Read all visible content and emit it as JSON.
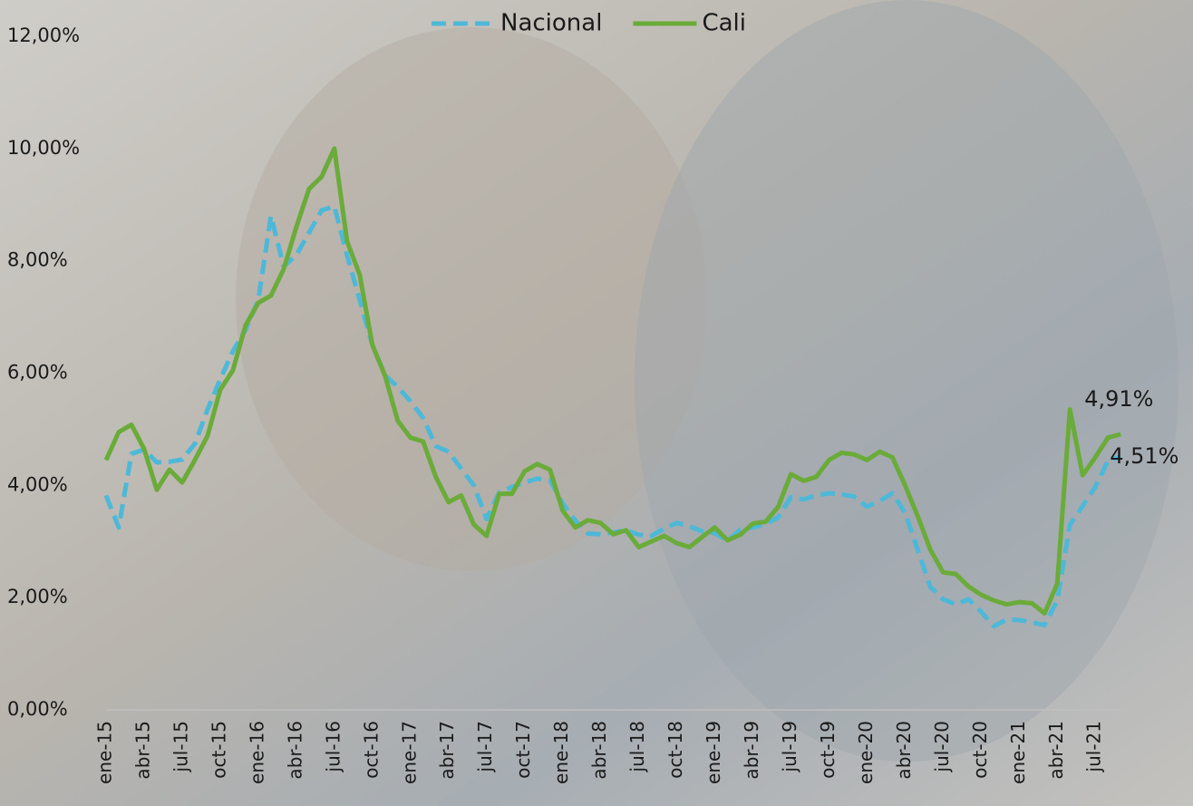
{
  "chart_data": {
    "type": "line",
    "categories": [
      "ene-15",
      null,
      null,
      "abr-15",
      null,
      null,
      "jul-15",
      null,
      null,
      "oct-15",
      null,
      null,
      "ene-16",
      null,
      null,
      "abr-16",
      null,
      null,
      "jul-16",
      null,
      null,
      "oct-16",
      null,
      null,
      "ene-17",
      null,
      null,
      "abr-17",
      null,
      null,
      "jul-17",
      null,
      null,
      "oct-17",
      null,
      null,
      "ene-18",
      null,
      null,
      "abr-18",
      null,
      null,
      "jul-18",
      null,
      null,
      "oct-18",
      null,
      null,
      "ene-19",
      null,
      null,
      "abr-19",
      null,
      null,
      "jul-19",
      null,
      null,
      "oct-19",
      null,
      null,
      "ene-20",
      null,
      null,
      "abr-20",
      null,
      null,
      "jul-20",
      null,
      null,
      "oct-20",
      null,
      null,
      "ene-21",
      null,
      null,
      "abr-21",
      null,
      null,
      "jul-21",
      null,
      null
    ],
    "series": [
      {
        "name": "Nacional",
        "color": "#4db8d8",
        "dashed": true,
        "end_label": "4,51%",
        "values": [
          3.82,
          3.25,
          4.56,
          4.64,
          4.41,
          4.42,
          4.46,
          4.74,
          5.35,
          5.89,
          6.39,
          6.77,
          7.3,
          8.8,
          7.9,
          8.1,
          8.5,
          8.9,
          8.97,
          8.1,
          7.3,
          6.5,
          5.96,
          5.75,
          5.5,
          5.2,
          4.7,
          4.6,
          4.3,
          4.0,
          3.4,
          3.87,
          3.97,
          4.05,
          4.12,
          4.09,
          3.68,
          3.37,
          3.14,
          3.13,
          3.16,
          3.2,
          3.12,
          3.1,
          3.23,
          3.33,
          3.27,
          3.18,
          3.15,
          3.01,
          3.21,
          3.25,
          3.31,
          3.43,
          3.79,
          3.75,
          3.82,
          3.86,
          3.84,
          3.8,
          3.62,
          3.72,
          3.86,
          3.51,
          2.85,
          2.19,
          1.97,
          1.88,
          1.97,
          1.75,
          1.49,
          1.61,
          1.6,
          1.56,
          1.51,
          1.95,
          3.3,
          3.63,
          3.97,
          4.44,
          4.51
        ]
      },
      {
        "name": "Cali",
        "color": "#6aab3a",
        "dashed": false,
        "end_label": "4,91%",
        "values": [
          4.45,
          4.95,
          5.08,
          4.65,
          3.92,
          4.28,
          4.05,
          4.45,
          4.88,
          5.7,
          6.05,
          6.85,
          7.25,
          7.38,
          7.85,
          8.6,
          9.28,
          9.5,
          10.0,
          8.35,
          7.75,
          6.5,
          5.95,
          5.15,
          4.85,
          4.78,
          4.15,
          3.7,
          3.82,
          3.3,
          3.1,
          3.85,
          3.85,
          4.25,
          4.38,
          4.28,
          3.55,
          3.25,
          3.38,
          3.33,
          3.13,
          3.2,
          2.9,
          3.0,
          3.1,
          2.97,
          2.9,
          3.08,
          3.25,
          3.02,
          3.12,
          3.32,
          3.35,
          3.62,
          4.2,
          4.08,
          4.15,
          4.45,
          4.58,
          4.55,
          4.45,
          4.6,
          4.5,
          4.0,
          3.45,
          2.85,
          2.45,
          2.42,
          2.2,
          2.05,
          1.95,
          1.88,
          1.92,
          1.9,
          1.72,
          2.25,
          5.35,
          4.18,
          4.5,
          4.85,
          4.91
        ]
      }
    ],
    "ylim": [
      0,
      12
    ],
    "yticks": [
      {
        "value": 0,
        "label": "0,00%"
      },
      {
        "value": 2,
        "label": "2,00%"
      },
      {
        "value": 4,
        "label": "4,00%"
      },
      {
        "value": 6,
        "label": "6,00%"
      },
      {
        "value": 8,
        "label": "8,00%"
      },
      {
        "value": 10,
        "label": "10,00%"
      },
      {
        "value": 12,
        "label": "12,00%"
      }
    ],
    "grid": false,
    "legend": "top"
  }
}
